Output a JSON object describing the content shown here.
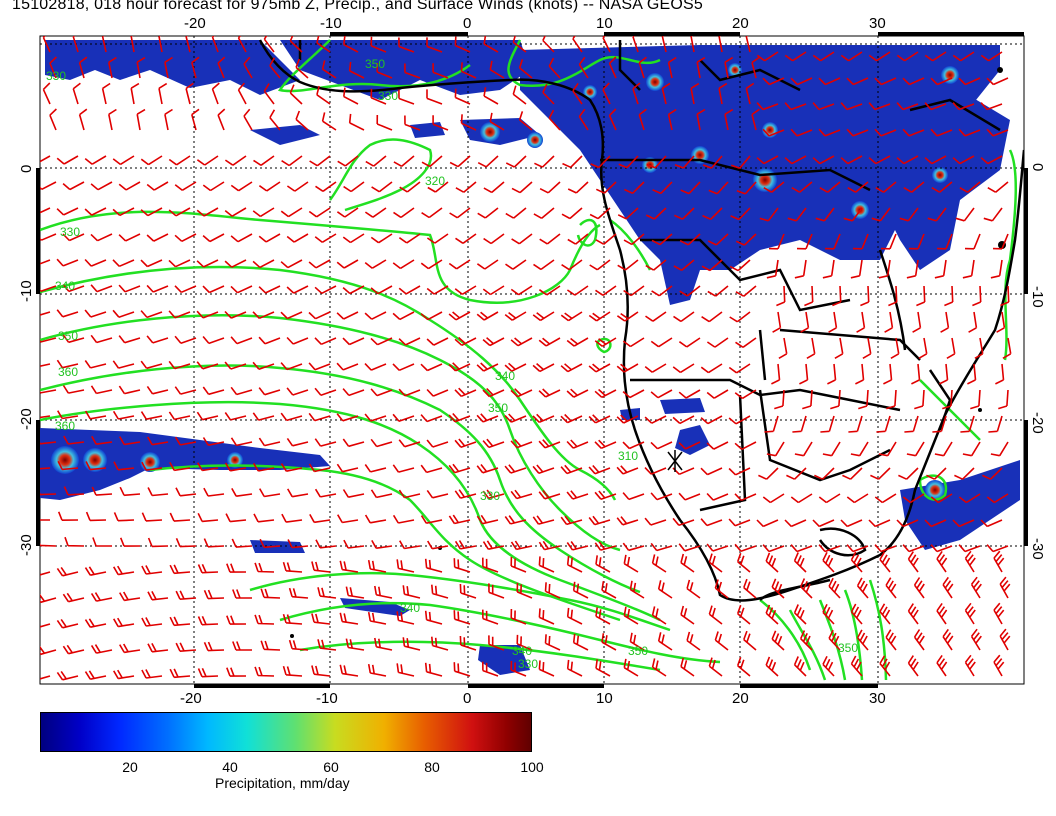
{
  "title": "15102818, 018 hour forecast for 975mb Z, Precip., and Surface Winds (knots) -- NASA GEOS5",
  "map": {
    "lon_labels": [
      "-20",
      "-10",
      "0",
      "10",
      "20",
      "30"
    ],
    "lat_labels": [
      "0",
      "-10",
      "-20",
      "-30"
    ],
    "contour_labels": [
      "330",
      "330",
      "330",
      "340",
      "350",
      "360",
      "350",
      "340",
      "330",
      "310",
      "320",
      "350",
      "360",
      "350",
      "340",
      "330",
      "350",
      "340"
    ],
    "colors": {
      "contour": "#22e022",
      "barb": "#e00000",
      "coast": "#000000"
    }
  },
  "colorbar": {
    "ticks": [
      "20",
      "40",
      "60",
      "80",
      "100"
    ],
    "label": "Precipitation, mm/day"
  }
}
